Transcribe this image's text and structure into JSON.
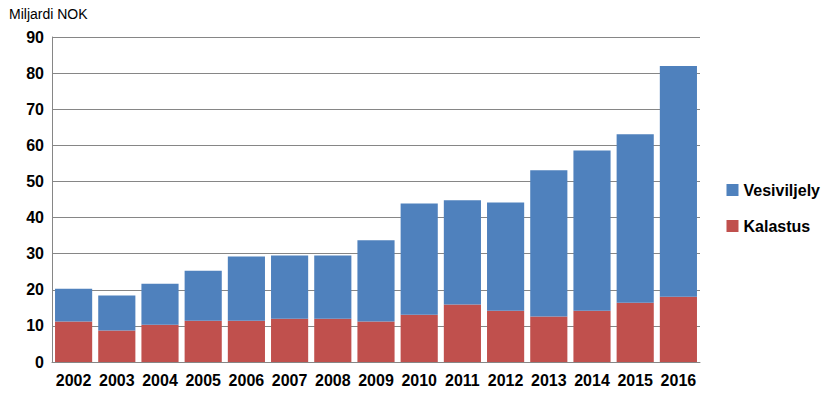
{
  "chart_data": {
    "type": "bar",
    "stacked": true,
    "ylabel": "Miljardi NOK",
    "categories": [
      "2002",
      "2003",
      "2004",
      "2005",
      "2006",
      "2007",
      "2008",
      "2009",
      "2010",
      "2011",
      "2012",
      "2013",
      "2014",
      "2015",
      "2016"
    ],
    "series": [
      {
        "name": "Kalastus",
        "color": "#c0504d",
        "values": [
          11.2,
          8.7,
          10.3,
          11.4,
          11.4,
          12.0,
          12.0,
          11.2,
          13.1,
          15.9,
          14.2,
          12.6,
          14.2,
          16.4,
          18.1
        ]
      },
      {
        "name": "Vesiviljely",
        "color": "#4f81bd",
        "values": [
          9.1,
          9.7,
          11.4,
          13.9,
          17.8,
          17.5,
          17.5,
          22.5,
          30.8,
          28.9,
          30.0,
          40.5,
          44.4,
          46.7,
          63.9
        ]
      }
    ],
    "ylim": [
      0,
      90
    ],
    "yticks": [
      0,
      10,
      20,
      30,
      40,
      50,
      60,
      70,
      80,
      90
    ],
    "grid": true,
    "legend": "right"
  }
}
